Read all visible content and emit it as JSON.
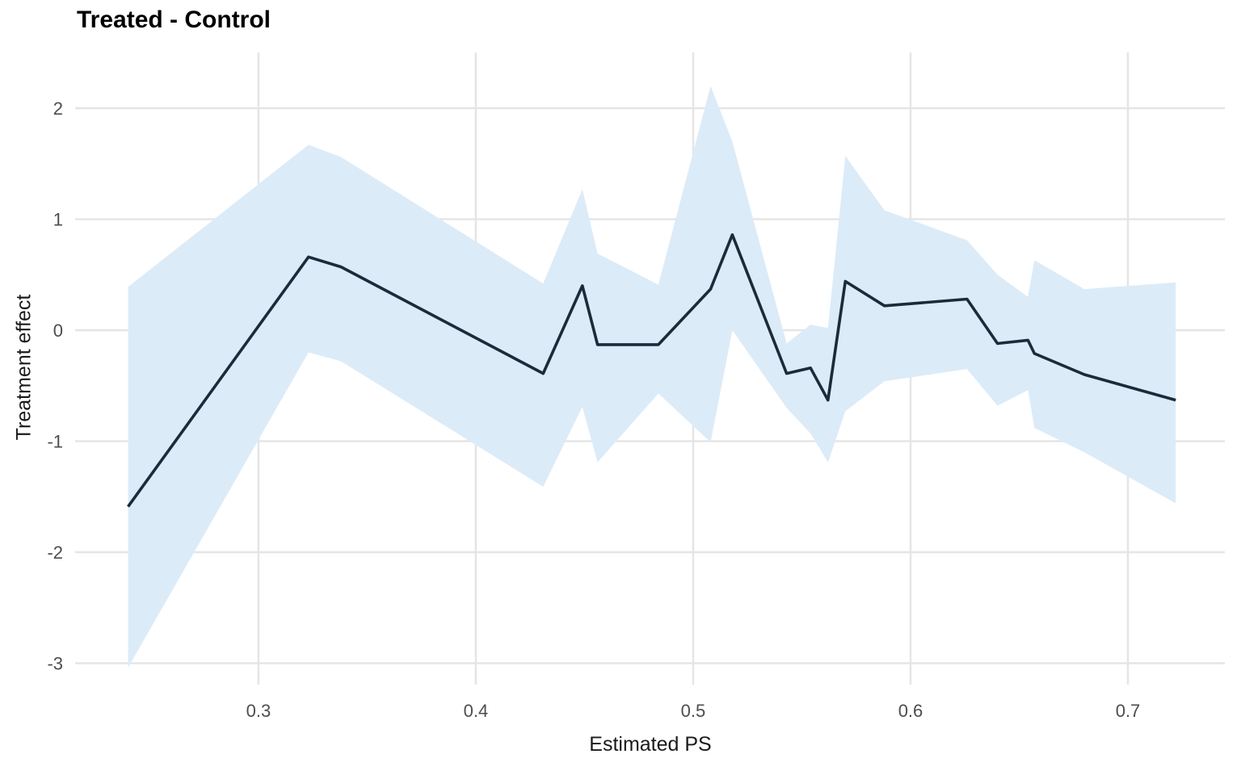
{
  "chart_data": {
    "type": "line",
    "title": "Treated - Control",
    "xlabel": "Estimated PS",
    "ylabel": "Treatment effect",
    "x_ticks": [
      0.3,
      0.4,
      0.5,
      0.6,
      0.7
    ],
    "x_tick_labels": [
      "0.3",
      "0.4",
      "0.5",
      "0.6",
      "0.7"
    ],
    "y_ticks": [
      2,
      1,
      0,
      -1,
      -2,
      -3
    ],
    "y_tick_labels": [
      "2",
      "1",
      "0",
      "-1",
      "-2",
      "-3"
    ],
    "xlim": [
      0.2164,
      0.7446
    ],
    "ylim": [
      -3.171,
      2.502
    ],
    "grid": "major-only",
    "legend": "none",
    "series": [
      {
        "name": "treatment_effect_with_ci",
        "type": "line-with-ribbon",
        "points": [
          {
            "x": 0.24,
            "y": -1.59,
            "lo": -3.04,
            "hi": 0.39
          },
          {
            "x": 0.323,
            "y": 0.66,
            "lo": -0.2,
            "hi": 1.67
          },
          {
            "x": 0.338,
            "y": 0.57,
            "lo": -0.28,
            "hi": 1.56
          },
          {
            "x": 0.431,
            "y": -0.39,
            "lo": -1.41,
            "hi": 0.42
          },
          {
            "x": 0.449,
            "y": 0.4,
            "lo": -0.69,
            "hi": 1.27
          },
          {
            "x": 0.456,
            "y": -0.13,
            "lo": -1.19,
            "hi": 0.69
          },
          {
            "x": 0.484,
            "y": -0.13,
            "lo": -0.57,
            "hi": 0.41
          },
          {
            "x": 0.508,
            "y": 0.37,
            "lo": -1.01,
            "hi": 2.2
          },
          {
            "x": 0.518,
            "y": 0.86,
            "lo": 0.0,
            "hi": 1.7
          },
          {
            "x": 0.543,
            "y": -0.39,
            "lo": -0.7,
            "hi": -0.12
          },
          {
            "x": 0.554,
            "y": -0.34,
            "lo": -0.93,
            "hi": 0.05
          },
          {
            "x": 0.562,
            "y": -0.63,
            "lo": -1.19,
            "hi": 0.02
          },
          {
            "x": 0.57,
            "y": 0.44,
            "lo": -0.73,
            "hi": 1.57
          },
          {
            "x": 0.588,
            "y": 0.22,
            "lo": -0.46,
            "hi": 1.08
          },
          {
            "x": 0.626,
            "y": 0.28,
            "lo": -0.35,
            "hi": 0.81
          },
          {
            "x": 0.64,
            "y": -0.12,
            "lo": -0.68,
            "hi": 0.5
          },
          {
            "x": 0.654,
            "y": -0.09,
            "lo": -0.54,
            "hi": 0.3
          },
          {
            "x": 0.657,
            "y": -0.21,
            "lo": -0.88,
            "hi": 0.63
          },
          {
            "x": 0.68,
            "y": -0.4,
            "lo": -1.1,
            "hi": 0.37
          },
          {
            "x": 0.722,
            "y": -0.63,
            "lo": -1.56,
            "hi": 0.43
          }
        ]
      }
    ]
  },
  "colors": {
    "background": "#FFFFFF",
    "line": "#1B2B3A",
    "ribbon": "#DCEBF8",
    "gridline": "#E5E5E5",
    "tick_label": "#4D4D4D",
    "title": "#000000",
    "axis_title": "#1A1A1A"
  }
}
